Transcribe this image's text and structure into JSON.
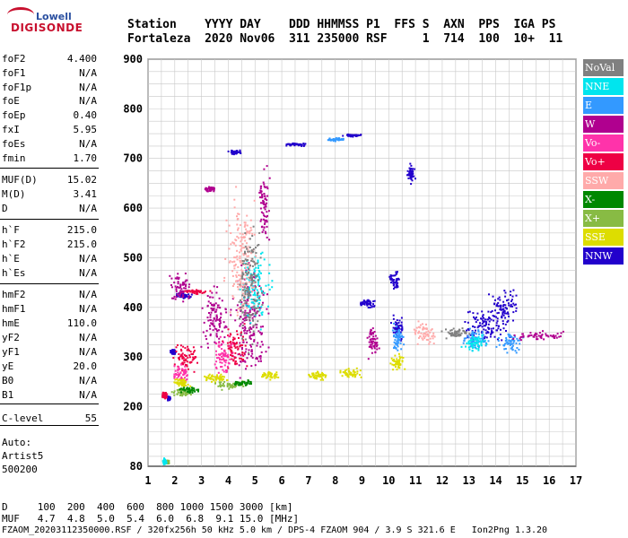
{
  "logo": {
    "line1": "Lowell",
    "line2": "DIGISONDE"
  },
  "header": {
    "labels": "Station    YYYY DAY    DDD HHMMSS P1  FFS S  AXN  PPS  IGA PS",
    "values": "Fortaleza  2020 Nov06  311 235000 RSF     1  714  100  10+  11"
  },
  "params": [
    {
      "k": "foF2",
      "v": "4.400"
    },
    {
      "k": "foF1",
      "v": "N/A"
    },
    {
      "k": "foF1p",
      "v": "N/A"
    },
    {
      "k": "foE",
      "v": "N/A"
    },
    {
      "k": "foEp",
      "v": "0.40"
    },
    {
      "k": "fxI",
      "v": "5.95"
    },
    {
      "k": "foEs",
      "v": "N/A"
    },
    {
      "k": "fmin",
      "v": "1.70"
    },
    {
      "k": "MUF(D)",
      "v": "15.02"
    },
    {
      "k": "M(D)",
      "v": "3.41"
    },
    {
      "k": "D",
      "v": "N/A"
    },
    {
      "k": "h`F",
      "v": "215.0"
    },
    {
      "k": "h`F2",
      "v": "215.0"
    },
    {
      "k": "h`E",
      "v": "N/A"
    },
    {
      "k": "h`Es",
      "v": "N/A"
    },
    {
      "k": "hmF2",
      "v": "N/A"
    },
    {
      "k": "hmF1",
      "v": "N/A"
    },
    {
      "k": "hmE",
      "v": "110.0"
    },
    {
      "k": "yF2",
      "v": "N/A"
    },
    {
      "k": "yF1",
      "v": "N/A"
    },
    {
      "k": "yE",
      "v": "20.0"
    },
    {
      "k": "B0",
      "v": "N/A"
    },
    {
      "k": "B1",
      "v": "N/A"
    },
    {
      "k": "C-level",
      "v": "55"
    }
  ],
  "auto": {
    "l1": "Auto:",
    "l2": "Artist5",
    "l3": "500200"
  },
  "legend": [
    {
      "label": "NoVal",
      "color": "#808080"
    },
    {
      "label": "NNE",
      "color": "#00e5ee"
    },
    {
      "label": "E",
      "color": "#3399ff"
    },
    {
      "label": "W",
      "color": "#b0008f"
    },
    {
      "label": "Vo-",
      "color": "#ff33aa"
    },
    {
      "label": "Vo+",
      "color": "#ee0044"
    },
    {
      "label": "SSW",
      "color": "#ffaaaa"
    },
    {
      "label": "X-",
      "color": "#008800"
    },
    {
      "label": "X+",
      "color": "#88bb44"
    },
    {
      "label": "SSE",
      "color": "#dddd00"
    },
    {
      "label": "NNW",
      "color": "#2200cc"
    }
  ],
  "bottom": {
    "line1": "D     100  200  400  600  800 1000 1500 3000 [km]",
    "line2": "MUF   4.7  4.8  5.0  5.4  6.0  6.8  9.1 15.0 [MHz]",
    "line3": "FZAOM_20203112350000.RSF / 320fx256h 50 kHz 5.0 km / DPS-4 FZAOM 904 / 3.9 S 321.6 E   Ion2Png 1.3.20"
  },
  "chart_data": {
    "type": "scatter",
    "title": "",
    "xlabel": "",
    "ylabel": "",
    "xlim": [
      1,
      17
    ],
    "ylim": [
      80,
      900
    ],
    "xticks": [
      1,
      2,
      3,
      4,
      5,
      6,
      7,
      8,
      9,
      10,
      11,
      12,
      13,
      14,
      15,
      16,
      17
    ],
    "yticks": [
      80,
      200,
      300,
      400,
      500,
      600,
      700,
      800,
      900
    ],
    "grid": true,
    "series": [
      {
        "name": "NNW",
        "color": "#2200cc",
        "clusters": [
          [
            1.75,
            218,
            0.12,
            6
          ],
          [
            1.9,
            312,
            0.12,
            6
          ],
          [
            2.3,
            425,
            0.4,
            6
          ],
          [
            4.2,
            715,
            0.3,
            5
          ],
          [
            6.5,
            730,
            0.6,
            4
          ],
          [
            8.6,
            748,
            0.4,
            4
          ],
          [
            9.2,
            410,
            0.4,
            12
          ],
          [
            10.2,
            455,
            0.25,
            25
          ],
          [
            10.3,
            360,
            0.3,
            30
          ],
          [
            13.5,
            360,
            1.2,
            45
          ],
          [
            14.3,
            400,
            0.7,
            50
          ],
          [
            10.8,
            670,
            0.2,
            25
          ]
        ]
      },
      {
        "name": "E",
        "color": "#3399ff",
        "clusters": [
          [
            8.0,
            740,
            0.4,
            4
          ],
          [
            13.2,
            340,
            0.6,
            30
          ],
          [
            14.5,
            330,
            0.6,
            30
          ],
          [
            10.3,
            340,
            0.3,
            40
          ]
        ]
      },
      {
        "name": "W",
        "color": "#b0008f",
        "clusters": [
          [
            2.2,
            440,
            0.5,
            40
          ],
          [
            3.5,
            380,
            0.7,
            80
          ],
          [
            4.8,
            380,
            0.8,
            150
          ],
          [
            5.3,
            600,
            0.3,
            100
          ],
          [
            15.5,
            345,
            1.2,
            12
          ],
          [
            9.4,
            330,
            0.3,
            40
          ],
          [
            3.3,
            640,
            0.3,
            6
          ]
        ]
      },
      {
        "name": "Vo+",
        "color": "#ee0044",
        "clusters": [
          [
            2.8,
            433,
            0.6,
            6
          ],
          [
            2.4,
            300,
            0.6,
            40
          ],
          [
            4.2,
            320,
            0.6,
            60
          ],
          [
            1.6,
            225,
            0.15,
            10
          ]
        ]
      },
      {
        "name": "Vo-",
        "color": "#ff33aa",
        "clusters": [
          [
            2.2,
            270,
            0.4,
            30
          ],
          [
            3.8,
            300,
            0.5,
            50
          ]
        ]
      },
      {
        "name": "SSE",
        "color": "#dddd00",
        "clusters": [
          [
            2.2,
            250,
            0.4,
            12
          ],
          [
            3.5,
            260,
            0.6,
            12
          ],
          [
            5.5,
            265,
            0.5,
            12
          ],
          [
            7.3,
            265,
            0.5,
            12
          ],
          [
            8.5,
            270,
            0.6,
            15
          ],
          [
            10.3,
            290,
            0.3,
            20
          ]
        ]
      },
      {
        "name": "X+",
        "color": "#88bb44",
        "clusters": [
          [
            2.2,
            230,
            0.5,
            10
          ],
          [
            4.0,
            245,
            0.7,
            10
          ],
          [
            1.7,
            90,
            0.1,
            6
          ]
        ]
      },
      {
        "name": "X-",
        "color": "#008800",
        "clusters": [
          [
            2.5,
            235,
            0.5,
            8
          ],
          [
            4.5,
            250,
            0.6,
            8
          ]
        ]
      },
      {
        "name": "NNE",
        "color": "#00e5ee",
        "clusters": [
          [
            5.0,
            440,
            0.7,
            100
          ],
          [
            13.2,
            330,
            0.6,
            25
          ],
          [
            1.6,
            90,
            0.1,
            8
          ]
        ]
      },
      {
        "name": "SSW",
        "color": "#ffaaaa",
        "clusters": [
          [
            4.5,
            500,
            0.8,
            150
          ],
          [
            11.3,
            350,
            0.5,
            30
          ]
        ]
      },
      {
        "name": "NoVal",
        "color": "#808080",
        "clusters": [
          [
            4.8,
            450,
            0.6,
            160
          ],
          [
            12.5,
            350,
            0.6,
            15
          ]
        ]
      }
    ]
  }
}
